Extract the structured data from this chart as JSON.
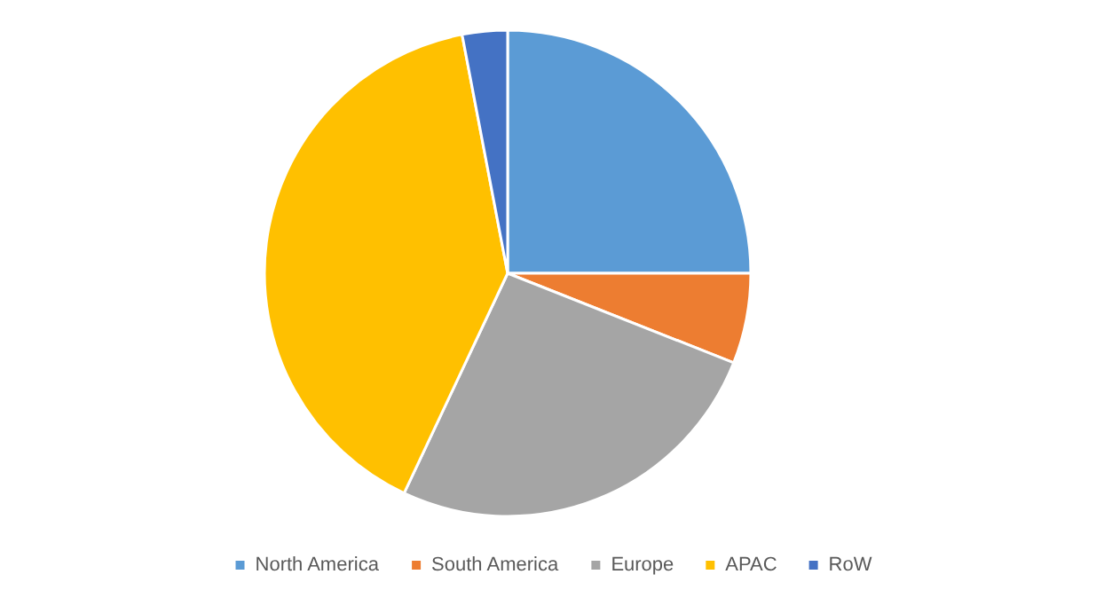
{
  "chart_data": {
    "type": "pie",
    "categories": [
      "North America",
      "South America",
      "Europe",
      "APAC",
      "RoW"
    ],
    "values": [
      25,
      6,
      26,
      40,
      3
    ],
    "colors": [
      "#5b9bd5",
      "#ed7d31",
      "#a5a5a5",
      "#ffc000",
      "#4472c4"
    ],
    "legend": "bottom"
  }
}
